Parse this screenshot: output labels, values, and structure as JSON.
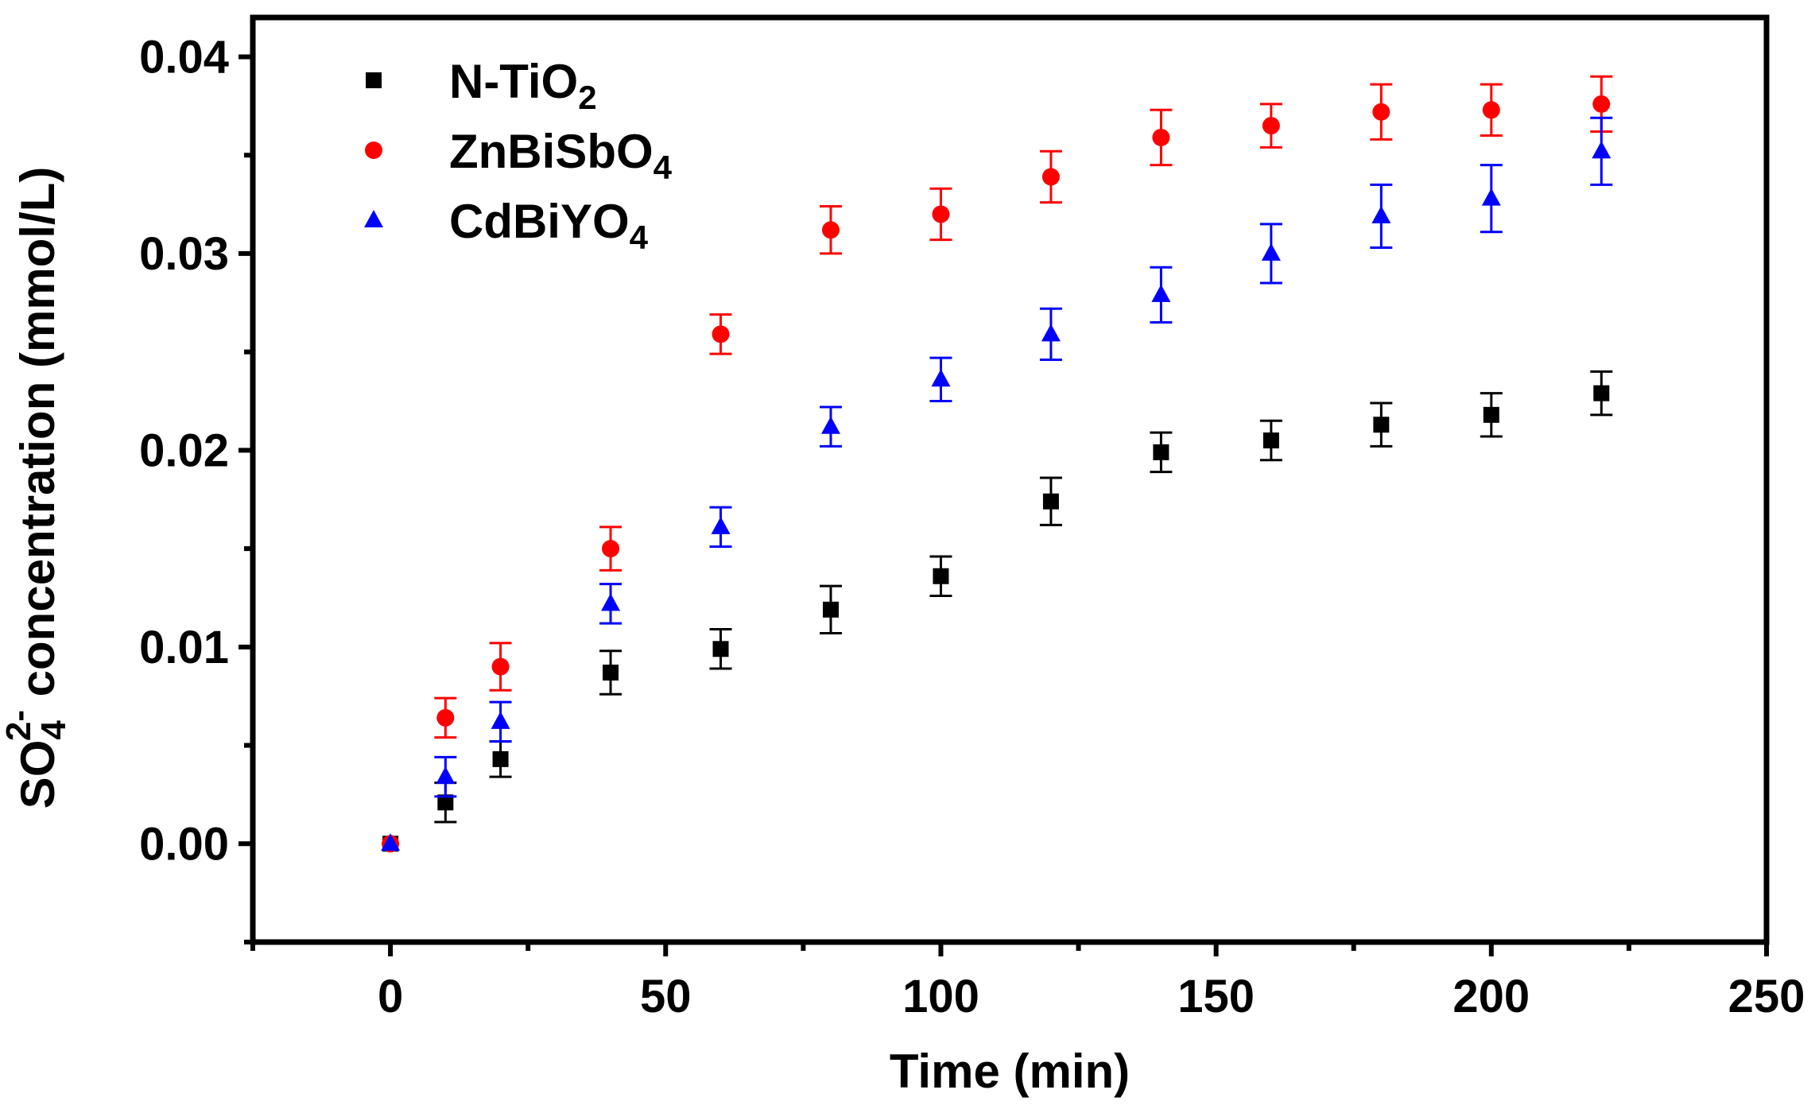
{
  "chart_data": {
    "type": "scatter",
    "xlabel": "Time (min)",
    "ylabel": {
      "prefix": "SO",
      "subscript": "4",
      "superscript": "2-",
      "suffix": " concentration (mmol/L)"
    },
    "xlim": [
      -25,
      250
    ],
    "ylim": [
      -0.005,
      0.042
    ],
    "x_ticks": [
      0,
      50,
      100,
      150,
      200,
      250
    ],
    "x_tick_labels": [
      "0",
      "50",
      "100",
      "150",
      "200",
      "250"
    ],
    "x_minor_ticks": [
      -25,
      25,
      75,
      125,
      175,
      225
    ],
    "y_ticks": [
      0.0,
      0.01,
      0.02,
      0.03,
      0.04
    ],
    "y_tick_labels": [
      "0.00",
      "0.01",
      "0.02",
      "0.03",
      "0.04"
    ],
    "y_minor_ticks": [
      -0.005,
      0.005,
      0.015,
      0.025,
      0.035
    ],
    "grid": false,
    "legend_position": "top-left",
    "series": [
      {
        "name": "N-TiO2",
        "label": {
          "base": "N-TiO",
          "sub": "2"
        },
        "color": "#000000",
        "marker": "square",
        "x": [
          0,
          10,
          20,
          40,
          60,
          80,
          100,
          120,
          140,
          160,
          180,
          200,
          220
        ],
        "y": [
          0.0,
          0.0021,
          0.0043,
          0.0087,
          0.0099,
          0.0119,
          0.0136,
          0.0174,
          0.0199,
          0.0205,
          0.0213,
          0.0218,
          0.0229
        ],
        "err": [
          0.0,
          0.001,
          0.0009,
          0.0011,
          0.001,
          0.0012,
          0.001,
          0.0012,
          0.001,
          0.001,
          0.0011,
          0.0011,
          0.0011
        ]
      },
      {
        "name": "ZnBiSbO4",
        "label": {
          "base": "ZnBiSbO",
          "sub": "4"
        },
        "color": "#ff0000",
        "marker": "circle",
        "x": [
          0,
          10,
          20,
          40,
          60,
          80,
          100,
          120,
          140,
          160,
          180,
          200,
          220
        ],
        "y": [
          0.0,
          0.0064,
          0.009,
          0.015,
          0.0259,
          0.0312,
          0.032,
          0.0339,
          0.0359,
          0.0365,
          0.0372,
          0.0373,
          0.0376
        ],
        "err": [
          0.0,
          0.001,
          0.0012,
          0.0011,
          0.001,
          0.0012,
          0.0013,
          0.0013,
          0.0014,
          0.0011,
          0.0014,
          0.0013,
          0.0014
        ]
      },
      {
        "name": "CdBiYO4",
        "label": {
          "base": "CdBiYO",
          "sub": "4"
        },
        "color": "#0000ff",
        "marker": "triangle",
        "x": [
          0,
          10,
          20,
          40,
          60,
          80,
          100,
          120,
          140,
          160,
          180,
          200,
          220
        ],
        "y": [
          0.0,
          0.0034,
          0.0062,
          0.0122,
          0.0161,
          0.0212,
          0.0236,
          0.0259,
          0.0279,
          0.03,
          0.0319,
          0.0328,
          0.0352
        ],
        "err": [
          0.0,
          0.001,
          0.001,
          0.001,
          0.001,
          0.001,
          0.0011,
          0.0013,
          0.0014,
          0.0015,
          0.0016,
          0.0017,
          0.0017
        ]
      }
    ]
  }
}
